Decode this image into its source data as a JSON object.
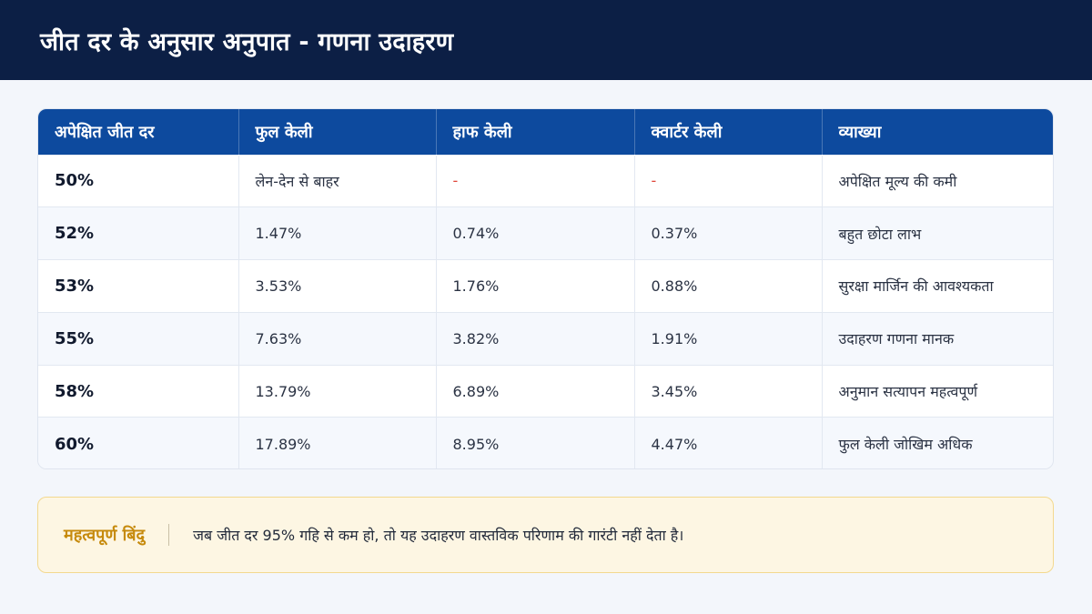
{
  "header": {
    "title": "जीत दर के अनुसार अनुपात - गणना उदाहरण"
  },
  "table": {
    "columns": [
      "अपेक्षित जीत दर",
      "फुल केली",
      "हाफ केली",
      "क्वार्टर केली",
      "व्याख्या"
    ],
    "rows": [
      {
        "rate": "50%",
        "full": "लेन-देन से बाहर",
        "half": "-",
        "quarter": "-",
        "note": "अपेक्षित मूल्य की कमी"
      },
      {
        "rate": "52%",
        "full": "1.47%",
        "half": "0.74%",
        "quarter": "0.37%",
        "note": "बहुत छोटा लाभ"
      },
      {
        "rate": "53%",
        "full": "3.53%",
        "half": "1.76%",
        "quarter": "0.88%",
        "note": "सुरक्षा मार्जिन की आवश्यकता"
      },
      {
        "rate": "55%",
        "full": "7.63%",
        "half": "3.82%",
        "quarter": "1.91%",
        "note": "उदाहरण गणना मानक"
      },
      {
        "rate": "58%",
        "full": "13.79%",
        "half": "6.89%",
        "quarter": "3.45%",
        "note": "अनुमान सत्यापन महत्वपूर्ण"
      },
      {
        "rate": "60%",
        "full": "17.89%",
        "half": "8.95%",
        "quarter": "4.47%",
        "note": "फुल केली जोखिम अधिक"
      }
    ]
  },
  "callout": {
    "label": "महत्वपूर्ण बिंदु",
    "text": "जब जीत दर 95% गहि से कम हो, तो यह उदाहरण वास्तविक परिणाम की गारंटी नहीं देता है।"
  },
  "colors": {
    "header_bg": "#0c1f45",
    "table_header_bg": "#0d4a9e",
    "dash": "#e0463a",
    "callout_label": "#c68a0c",
    "callout_bg": "#fdf6e3"
  }
}
